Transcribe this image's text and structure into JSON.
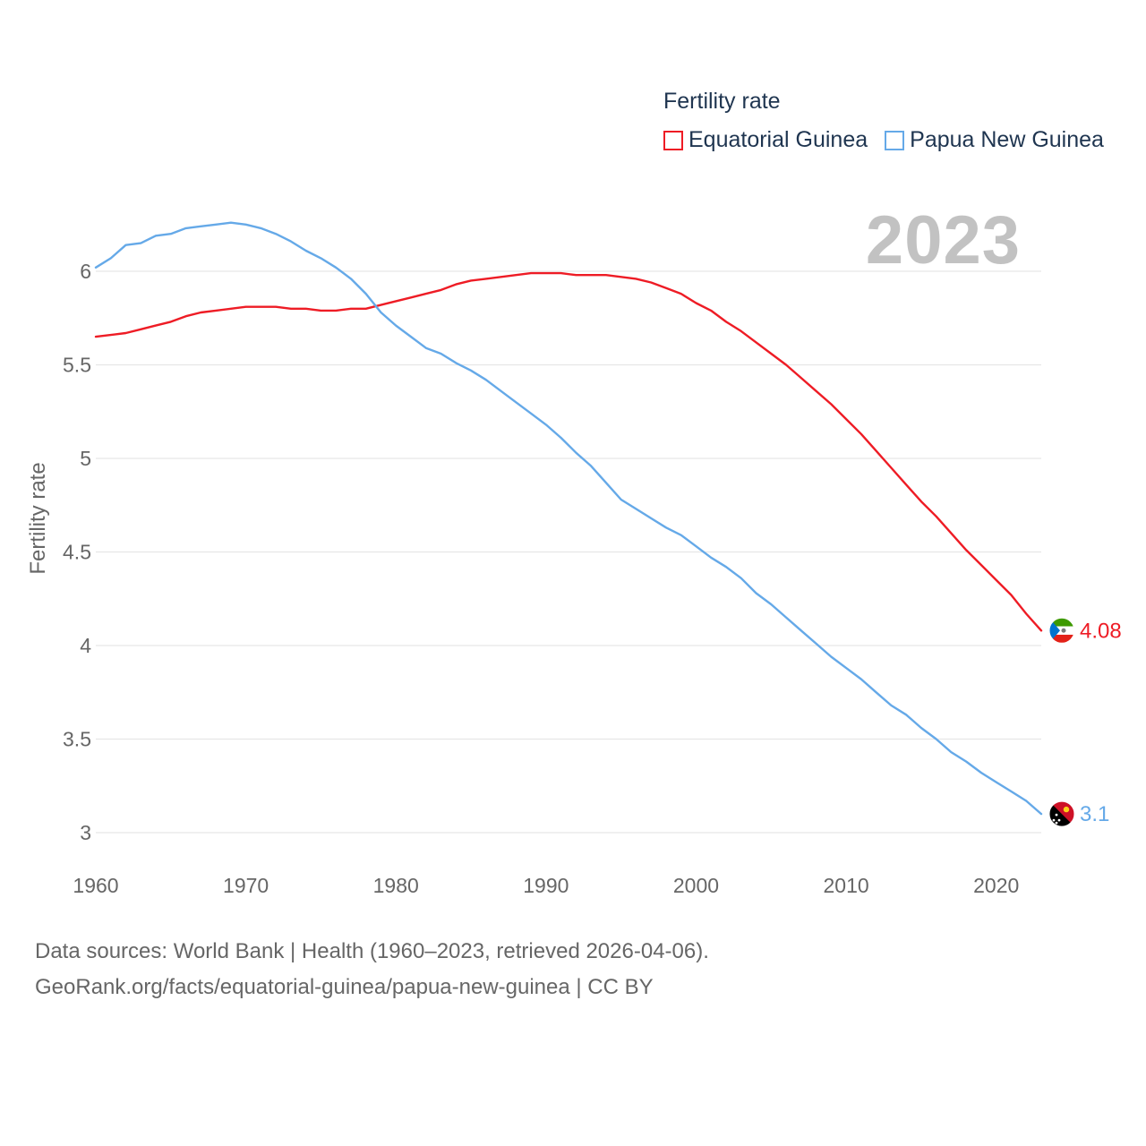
{
  "chart_data": {
    "type": "line",
    "title": "Fertility rate",
    "year_label": "2023",
    "xlabel": "",
    "ylabel": "Fertility rate",
    "xlim": [
      1960,
      2023
    ],
    "ylim": [
      3,
      6.3
    ],
    "x_ticks": [
      1960,
      1970,
      1980,
      1990,
      2000,
      2010,
      2020
    ],
    "y_ticks": [
      {
        "value": 3,
        "label": "3"
      },
      {
        "value": 3.5,
        "label": "3.5"
      },
      {
        "value": 4,
        "label": "4"
      },
      {
        "value": 4.5,
        "label": "4.5"
      },
      {
        "value": 5,
        "label": "5"
      },
      {
        "value": 5.5,
        "label": "5.5"
      },
      {
        "value": 6,
        "label": "6"
      }
    ],
    "grid": true,
    "legend_position": "top-right",
    "series": [
      {
        "name": "Equatorial Guinea",
        "color": "#ee1c25",
        "end_label": "4.08",
        "flag_icon": "equatorial-guinea-flag-icon",
        "x": [
          1960,
          1961,
          1962,
          1963,
          1964,
          1965,
          1966,
          1967,
          1968,
          1969,
          1970,
          1971,
          1972,
          1973,
          1974,
          1975,
          1976,
          1977,
          1978,
          1979,
          1980,
          1981,
          1982,
          1983,
          1984,
          1985,
          1986,
          1987,
          1988,
          1989,
          1990,
          1991,
          1992,
          1993,
          1994,
          1995,
          1996,
          1997,
          1998,
          1999,
          2000,
          2001,
          2002,
          2003,
          2004,
          2005,
          2006,
          2007,
          2008,
          2009,
          2010,
          2011,
          2012,
          2013,
          2014,
          2015,
          2016,
          2017,
          2018,
          2019,
          2020,
          2021,
          2022,
          2023
        ],
        "values": [
          5.65,
          5.66,
          5.67,
          5.69,
          5.71,
          5.73,
          5.76,
          5.78,
          5.79,
          5.8,
          5.81,
          5.81,
          5.81,
          5.8,
          5.8,
          5.79,
          5.79,
          5.8,
          5.8,
          5.82,
          5.84,
          5.86,
          5.88,
          5.9,
          5.93,
          5.95,
          5.96,
          5.97,
          5.98,
          5.99,
          5.99,
          5.99,
          5.98,
          5.98,
          5.98,
          5.97,
          5.96,
          5.94,
          5.91,
          5.88,
          5.83,
          5.79,
          5.73,
          5.68,
          5.62,
          5.56,
          5.5,
          5.43,
          5.36,
          5.29,
          5.21,
          5.13,
          5.04,
          4.95,
          4.86,
          4.77,
          4.69,
          4.6,
          4.51,
          4.43,
          4.35,
          4.27,
          4.17,
          4.08
        ]
      },
      {
        "name": "Papua New Guinea",
        "color": "#65a9e8",
        "end_label": "3.1",
        "flag_icon": "papua-new-guinea-flag-icon",
        "x": [
          1960,
          1961,
          1962,
          1963,
          1964,
          1965,
          1966,
          1967,
          1968,
          1969,
          1970,
          1971,
          1972,
          1973,
          1974,
          1975,
          1976,
          1977,
          1978,
          1979,
          1980,
          1981,
          1982,
          1983,
          1984,
          1985,
          1986,
          1987,
          1988,
          1989,
          1990,
          1991,
          1992,
          1993,
          1994,
          1995,
          1996,
          1997,
          1998,
          1999,
          2000,
          2001,
          2002,
          2003,
          2004,
          2005,
          2006,
          2007,
          2008,
          2009,
          2010,
          2011,
          2012,
          2013,
          2014,
          2015,
          2016,
          2017,
          2018,
          2019,
          2020,
          2021,
          2022,
          2023
        ],
        "values": [
          6.02,
          6.07,
          6.14,
          6.15,
          6.19,
          6.2,
          6.23,
          6.24,
          6.25,
          6.26,
          6.25,
          6.23,
          6.2,
          6.16,
          6.11,
          6.07,
          6.02,
          5.96,
          5.88,
          5.78,
          5.71,
          5.65,
          5.59,
          5.56,
          5.51,
          5.47,
          5.42,
          5.36,
          5.3,
          5.24,
          5.18,
          5.11,
          5.03,
          4.96,
          4.87,
          4.78,
          4.73,
          4.68,
          4.63,
          4.59,
          4.53,
          4.47,
          4.42,
          4.36,
          4.28,
          4.22,
          4.15,
          4.08,
          4.01,
          3.94,
          3.88,
          3.82,
          3.75,
          3.68,
          3.63,
          3.56,
          3.5,
          3.43,
          3.38,
          3.32,
          3.27,
          3.22,
          3.17,
          3.1
        ]
      }
    ]
  },
  "footer": {
    "line1": "Data sources: World Bank | Health (1960–2023, retrieved 2026-04-06).",
    "line2": "GeoRank.org/facts/equatorial-guinea/papua-new-guinea | CC BY"
  }
}
